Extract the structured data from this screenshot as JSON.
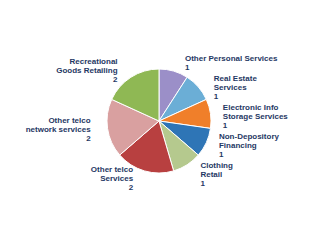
{
  "chart_data": {
    "type": "pie",
    "categories": [
      "Other Personal Services\n1",
      "Real Estate\nServices\n1",
      "Electronic Info\nStorage Services\n1",
      "Non-Depository\nFinancing\n1",
      "Clothing\nRetail\n1",
      "Other telco\nServices\n2",
      "Other telco\nnetwork services\n2",
      "Recreational\nGoods Retailing\n2"
    ],
    "values": [
      1,
      1,
      1,
      1,
      1,
      2,
      2,
      2
    ],
    "colors": [
      "#9b8fc8",
      "#6baed6",
      "#f07f2a",
      "#2e75b6",
      "#b5c98e",
      "#b84040",
      "#d9a0a0",
      "#8fb854"
    ]
  }
}
